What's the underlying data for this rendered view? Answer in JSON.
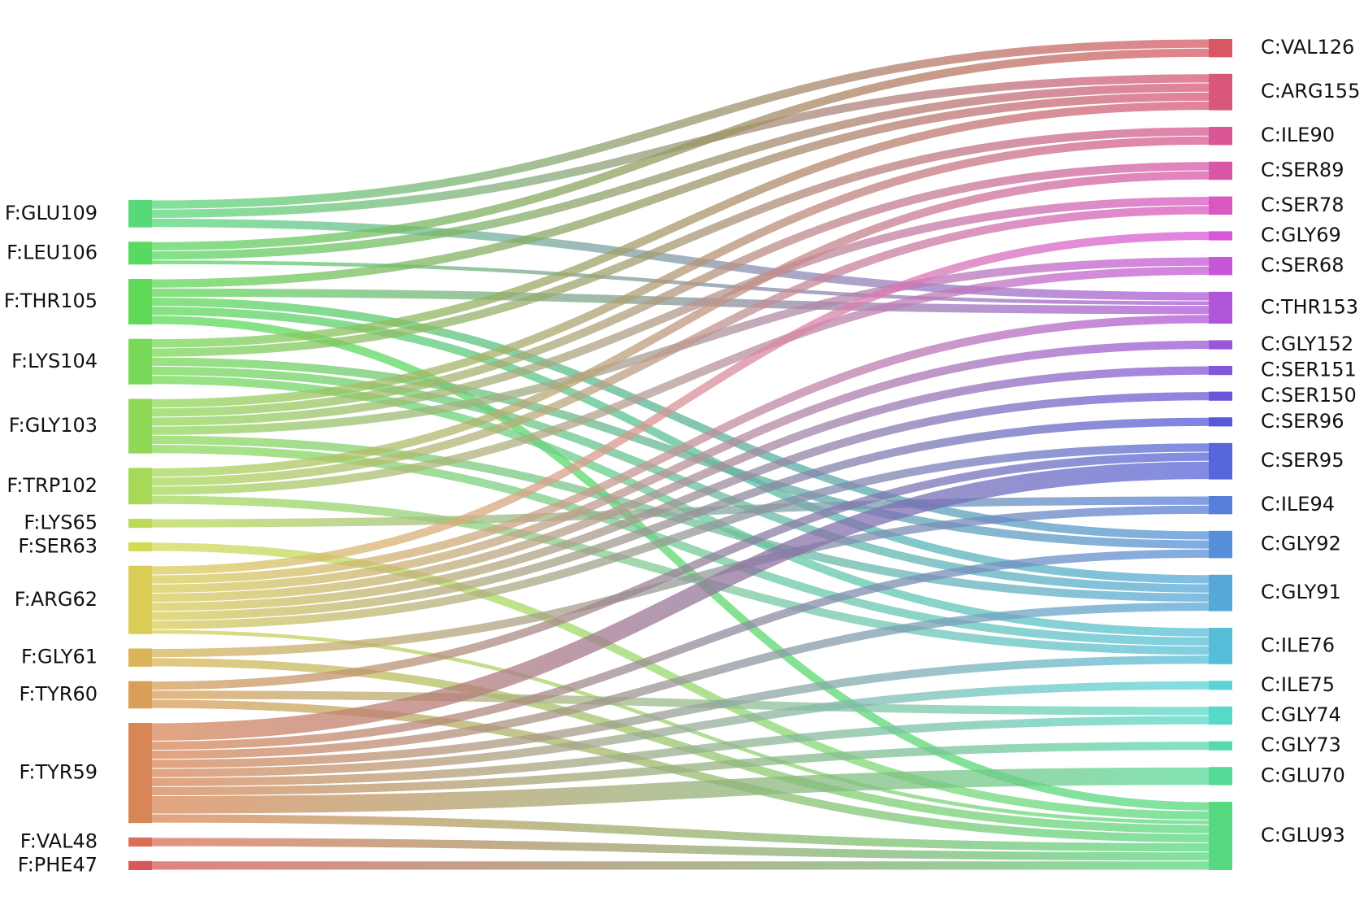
{
  "left_nodes": [
    {
      "label": "F:GLU109",
      "color": "#57d97a"
    },
    {
      "label": "F:LEU106",
      "color": "#58d95f"
    },
    {
      "label": "F:THR105",
      "color": "#5fd957"
    },
    {
      "label": "F:LYS104",
      "color": "#77d957"
    },
    {
      "label": "F:GLY103",
      "color": "#8fd957"
    },
    {
      "label": "F:TRP102",
      "color": "#a6d957"
    },
    {
      "label": "F:LYS65",
      "color": "#bed957"
    },
    {
      "label": "F:SER63",
      "color": "#d4d957"
    },
    {
      "label": "F:ARG62",
      "color": "#d9cd57"
    },
    {
      "label": "F:GLY61",
      "color": "#d9b557"
    },
    {
      "label": "F:TYR60",
      "color": "#d99e57"
    },
    {
      "label": "F:TYR59",
      "color": "#d98657"
    },
    {
      "label": "F:VAL48",
      "color": "#d96f57"
    },
    {
      "label": "F:PHE47",
      "color": "#d95757"
    }
  ],
  "right_nodes": [
    {
      "label": "C:VAL126",
      "color": "#d95763"
    },
    {
      "label": "C:ARG155",
      "color": "#d9577a"
    },
    {
      "label": "C:ILE90",
      "color": "#d95792"
    },
    {
      "label": "C:SER89",
      "color": "#d957a9"
    },
    {
      "label": "C:SER78",
      "color": "#d957c1"
    },
    {
      "label": "C:GLY69",
      "color": "#d957d8"
    },
    {
      "label": "C:SER68",
      "color": "#c757d9"
    },
    {
      "label": "C:THR153",
      "color": "#b057d9"
    },
    {
      "label": "C:GLY152",
      "color": "#9857d9"
    },
    {
      "label": "C:SER151",
      "color": "#8157d9"
    },
    {
      "label": "C:SER150",
      "color": "#6957d9"
    },
    {
      "label": "C:SER96",
      "color": "#5759d9"
    },
    {
      "label": "C:SER95",
      "color": "#5766d9"
    },
    {
      "label": "C:ILE94",
      "color": "#577ed9"
    },
    {
      "label": "C:GLY92",
      "color": "#5790d9"
    },
    {
      "label": "C:GLY91",
      "color": "#57a8d9"
    },
    {
      "label": "C:ILE76",
      "color": "#57bed9"
    },
    {
      "label": "C:ILE75",
      "color": "#57d5d9"
    },
    {
      "label": "C:GLY74",
      "color": "#57d9c7"
    },
    {
      "label": "C:GLY73",
      "color": "#57d9ae"
    },
    {
      "label": "C:GLU70",
      "color": "#57d997"
    },
    {
      "label": "C:GLU93",
      "color": "#57d981"
    }
  ],
  "links": [
    {
      "source": 0,
      "target": 0,
      "value": 2
    },
    {
      "source": 0,
      "target": 1,
      "value": 2
    },
    {
      "source": 0,
      "target": 7,
      "value": 2
    },
    {
      "source": 1,
      "target": 0,
      "value": 2
    },
    {
      "source": 1,
      "target": 1,
      "value": 2
    },
    {
      "source": 1,
      "target": 7,
      "value": 1
    },
    {
      "source": 2,
      "target": 1,
      "value": 2
    },
    {
      "source": 2,
      "target": 7,
      "value": 2
    },
    {
      "source": 2,
      "target": 14,
      "value": 2
    },
    {
      "source": 2,
      "target": 15,
      "value": 2
    },
    {
      "source": 2,
      "target": 21,
      "value": 2
    },
    {
      "source": 3,
      "target": 1,
      "value": 2
    },
    {
      "source": 3,
      "target": 2,
      "value": 2
    },
    {
      "source": 3,
      "target": 14,
      "value": 2
    },
    {
      "source": 3,
      "target": 15,
      "value": 2
    },
    {
      "source": 3,
      "target": 16,
      "value": 2
    },
    {
      "source": 4,
      "target": 2,
      "value": 2
    },
    {
      "source": 4,
      "target": 3,
      "value": 2
    },
    {
      "source": 4,
      "target": 4,
      "value": 2
    },
    {
      "source": 4,
      "target": 6,
      "value": 2
    },
    {
      "source": 4,
      "target": 15,
      "value": 2
    },
    {
      "source": 4,
      "target": 16,
      "value": 2
    },
    {
      "source": 5,
      "target": 3,
      "value": 2
    },
    {
      "source": 5,
      "target": 4,
      "value": 2
    },
    {
      "source": 5,
      "target": 6,
      "value": 2
    },
    {
      "source": 5,
      "target": 16,
      "value": 2
    },
    {
      "source": 6,
      "target": 13,
      "value": 2
    },
    {
      "source": 7,
      "target": 21,
      "value": 2
    },
    {
      "source": 8,
      "target": 5,
      "value": 2
    },
    {
      "source": 8,
      "target": 7,
      "value": 2
    },
    {
      "source": 8,
      "target": 8,
      "value": 2
    },
    {
      "source": 8,
      "target": 9,
      "value": 2
    },
    {
      "source": 8,
      "target": 10,
      "value": 2
    },
    {
      "source": 8,
      "target": 11,
      "value": 2
    },
    {
      "source": 8,
      "target": 12,
      "value": 2
    },
    {
      "source": 8,
      "target": 21,
      "value": 1
    },
    {
      "source": 9,
      "target": 13,
      "value": 2
    },
    {
      "source": 9,
      "target": 21,
      "value": 2
    },
    {
      "source": 10,
      "target": 12,
      "value": 2
    },
    {
      "source": 10,
      "target": 18,
      "value": 2
    },
    {
      "source": 10,
      "target": 21,
      "value": 2
    },
    {
      "source": 11,
      "target": 12,
      "value": 4
    },
    {
      "source": 11,
      "target": 14,
      "value": 2
    },
    {
      "source": 11,
      "target": 15,
      "value": 2
    },
    {
      "source": 11,
      "target": 16,
      "value": 2
    },
    {
      "source": 11,
      "target": 17,
      "value": 2
    },
    {
      "source": 11,
      "target": 18,
      "value": 2
    },
    {
      "source": 11,
      "target": 19,
      "value": 2
    },
    {
      "source": 11,
      "target": 20,
      "value": 4
    },
    {
      "source": 11,
      "target": 21,
      "value": 2
    },
    {
      "source": 12,
      "target": 21,
      "value": 2
    },
    {
      "source": 13,
      "target": 21,
      "value": 2
    }
  ]
}
